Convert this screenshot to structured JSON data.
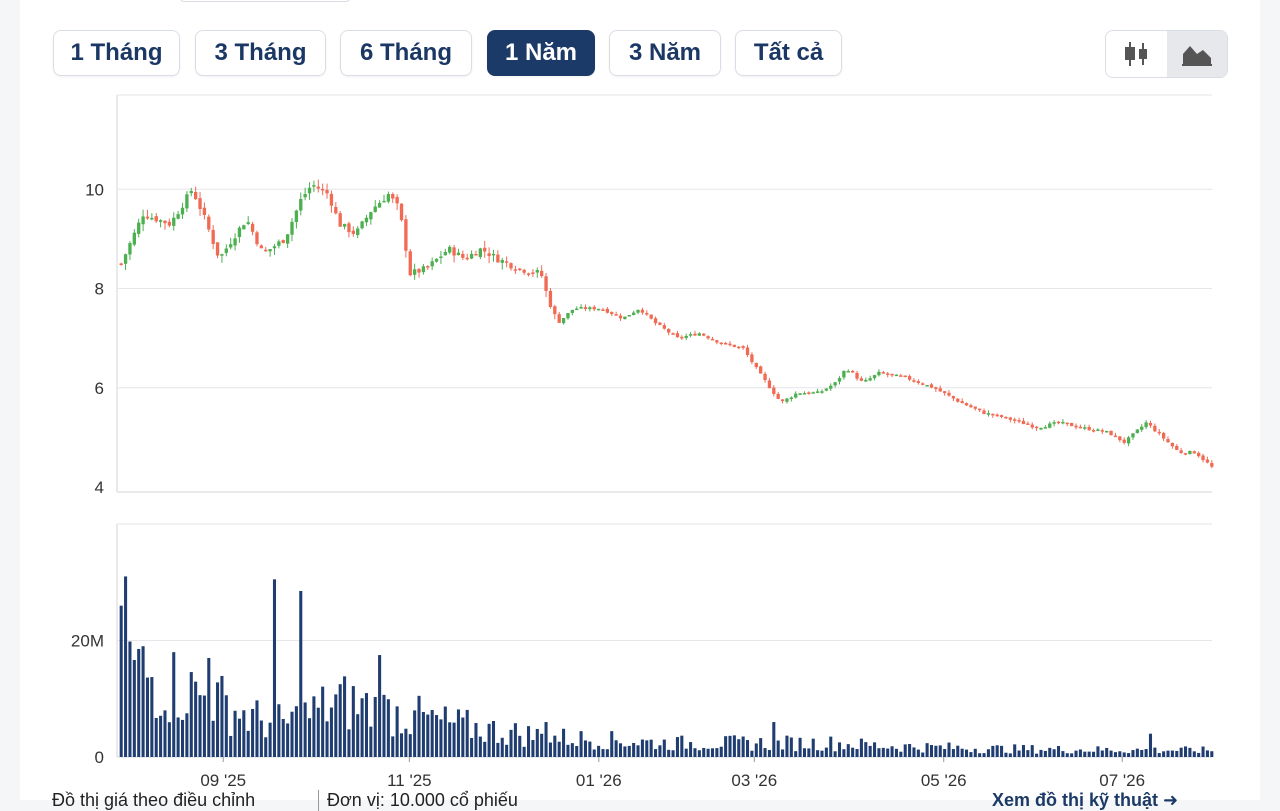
{
  "range_buttons": [
    {
      "label": "1 Tháng",
      "active": false
    },
    {
      "label": "3 Tháng",
      "active": false
    },
    {
      "label": "6 Tháng",
      "active": false
    },
    {
      "label": "1 Năm",
      "active": true
    },
    {
      "label": "3 Năm",
      "active": false
    },
    {
      "label": "Tất cả",
      "active": false
    }
  ],
  "chart_type_toggle": {
    "options": [
      "candlestick-icon",
      "area-chart-icon"
    ],
    "active": "area-chart-icon"
  },
  "colors": {
    "up": "#4caf50",
    "down": "#f06a54",
    "volume": "#1f3d70",
    "active_button": "#1c3a67"
  },
  "chart_data": [
    {
      "type": "candlestick",
      "ylim": [
        3.9,
        11.9
      ],
      "yticks": [
        4,
        6,
        8,
        10
      ],
      "xticks": [
        "09 '25",
        "11 '25",
        "01 '26",
        "03 '26",
        "05 '26",
        "07 '26"
      ],
      "grid": true,
      "series": [
        {
          "anchors": [
            {
              "t": 0,
              "close": 8.5
            },
            {
              "t": 0.02,
              "close": 9.5
            },
            {
              "t": 0.045,
              "close": 9.3
            },
            {
              "t": 0.065,
              "close": 10.0
            },
            {
              "t": 0.075,
              "close": 9.5
            },
            {
              "t": 0.09,
              "close": 8.6
            },
            {
              "t": 0.105,
              "close": 9.1
            },
            {
              "t": 0.115,
              "close": 9.4
            },
            {
              "t": 0.13,
              "close": 8.7
            },
            {
              "t": 0.15,
              "close": 9.0
            },
            {
              "t": 0.165,
              "close": 9.8
            },
            {
              "t": 0.175,
              "close": 10.1
            },
            {
              "t": 0.19,
              "close": 9.9
            },
            {
              "t": 0.2,
              "close": 9.3
            },
            {
              "t": 0.215,
              "close": 9.1
            },
            {
              "t": 0.23,
              "close": 9.6
            },
            {
              "t": 0.245,
              "close": 9.9
            },
            {
              "t": 0.255,
              "close": 9.6
            },
            {
              "t": 0.265,
              "close": 8.3
            },
            {
              "t": 0.28,
              "close": 8.4
            },
            {
              "t": 0.3,
              "close": 8.8
            },
            {
              "t": 0.315,
              "close": 8.6
            },
            {
              "t": 0.33,
              "close": 8.8
            },
            {
              "t": 0.345,
              "close": 8.6
            },
            {
              "t": 0.365,
              "close": 8.4
            },
            {
              "t": 0.385,
              "close": 8.3
            },
            {
              "t": 0.39,
              "close": 7.9
            },
            {
              "t": 0.4,
              "close": 7.3
            },
            {
              "t": 0.415,
              "close": 7.6
            },
            {
              "t": 0.44,
              "close": 7.6
            },
            {
              "t": 0.46,
              "close": 7.4
            },
            {
              "t": 0.475,
              "close": 7.6
            },
            {
              "t": 0.49,
              "close": 7.3
            },
            {
              "t": 0.51,
              "close": 7.0
            },
            {
              "t": 0.53,
              "close": 7.1
            },
            {
              "t": 0.55,
              "close": 6.9
            },
            {
              "t": 0.57,
              "close": 6.8
            },
            {
              "t": 0.585,
              "close": 6.3
            },
            {
              "t": 0.605,
              "close": 5.7
            },
            {
              "t": 0.62,
              "close": 5.9
            },
            {
              "t": 0.64,
              "close": 5.9
            },
            {
              "t": 0.655,
              "close": 6.1
            },
            {
              "t": 0.665,
              "close": 6.4
            },
            {
              "t": 0.68,
              "close": 6.1
            },
            {
              "t": 0.695,
              "close": 6.3
            },
            {
              "t": 0.72,
              "close": 6.2
            },
            {
              "t": 0.745,
              "close": 6.0
            },
            {
              "t": 0.77,
              "close": 5.7
            },
            {
              "t": 0.79,
              "close": 5.5
            },
            {
              "t": 0.81,
              "close": 5.4
            },
            {
              "t": 0.84,
              "close": 5.2
            },
            {
              "t": 0.86,
              "close": 5.3
            },
            {
              "t": 0.88,
              "close": 5.2
            },
            {
              "t": 0.905,
              "close": 5.1
            },
            {
              "t": 0.92,
              "close": 4.9
            },
            {
              "t": 0.94,
              "close": 5.3
            },
            {
              "t": 0.955,
              "close": 5.0
            },
            {
              "t": 0.97,
              "close": 4.7
            },
            {
              "t": 0.985,
              "close": 4.7
            },
            {
              "t": 1,
              "close": 4.4
            }
          ]
        }
      ]
    },
    {
      "type": "bar",
      "ylim": [
        0,
        40
      ],
      "yticks": [
        {
          "value": 0,
          "label": "0"
        },
        {
          "value": 20,
          "label": "20M"
        }
      ],
      "series": [
        {
          "anchors": [
            {
              "t": 0,
              "value": 18
            },
            {
              "t": 0.03,
              "value": 14
            },
            {
              "t": 0.06,
              "value": 12
            },
            {
              "t": 0.09,
              "value": 10
            },
            {
              "t": 0.12,
              "value": 7
            },
            {
              "t": 0.15,
              "value": 6
            },
            {
              "t": 0.2,
              "value": 10
            },
            {
              "t": 0.25,
              "value": 8
            },
            {
              "t": 0.3,
              "value": 6
            },
            {
              "t": 0.35,
              "value": 4.5
            },
            {
              "t": 0.4,
              "value": 3.5
            },
            {
              "t": 0.45,
              "value": 3
            },
            {
              "t": 0.5,
              "value": 2.5
            },
            {
              "t": 0.55,
              "value": 2.5
            },
            {
              "t": 0.6,
              "value": 2.5
            },
            {
              "t": 0.65,
              "value": 2.5
            },
            {
              "t": 0.7,
              "value": 2
            },
            {
              "t": 0.8,
              "value": 1.5
            },
            {
              "t": 0.9,
              "value": 1.3
            },
            {
              "t": 1,
              "value": 1.2
            }
          ],
          "spikes": [
            {
              "t": 0.004,
              "value": 31
            },
            {
              "t": 0.05,
              "value": 18
            },
            {
              "t": 0.079,
              "value": 17
            },
            {
              "t": 0.142,
              "value": 30.5
            },
            {
              "t": 0.164,
              "value": 28.5
            },
            {
              "t": 0.237,
              "value": 17.5
            },
            {
              "t": 0.27,
              "value": 8
            },
            {
              "t": 0.39,
              "value": 6
            },
            {
              "t": 0.6,
              "value": 6
            },
            {
              "t": 0.945,
              "value": 4
            }
          ]
        }
      ]
    }
  ],
  "footer": {
    "left_text": "Đồ thị giá theo điều chỉnh",
    "mid_text": "Đơn vị: 10.000 cổ phiếu",
    "right_text": "Xem đồ thị kỹ thuật ➜"
  }
}
